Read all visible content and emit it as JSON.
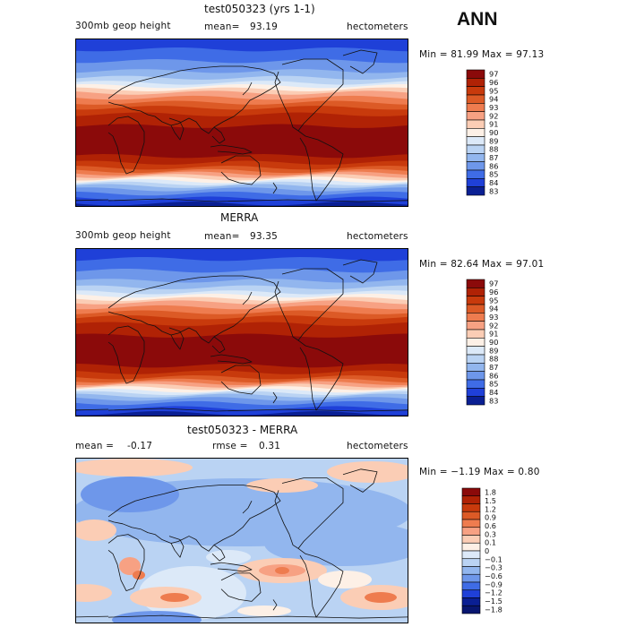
{
  "season": "ANN",
  "panels": [
    {
      "title": "test050323 (yrs 1-1)",
      "left": "300mb geop height",
      "mean_label": "mean=",
      "mean": "93.19",
      "units": "hectometers",
      "minmax": "Min =  81.99 Max =  97.13",
      "levels": [
        "97",
        "96",
        "95",
        "94",
        "93",
        "92",
        "91",
        "90",
        "89",
        "88",
        "87",
        "86",
        "85",
        "84",
        "83"
      ],
      "colors": [
        "#8b0a0a",
        "#b02205",
        "#c83a0c",
        "#dc5a26",
        "#ee7c4f",
        "#f7a183",
        "#fbcdb5",
        "#fdf0e6",
        "#dce9f8",
        "#bad3f3",
        "#92b6ee",
        "#6e97ea",
        "#3f6ce6",
        "#1f40d8",
        "#0a1f93"
      ]
    },
    {
      "title": "MERRA",
      "left": "300mb geop height",
      "mean_label": "mean=",
      "mean": "93.35",
      "units": "hectometers",
      "minmax": "Min =  82.64 Max =  97.01",
      "levels": [
        "97",
        "96",
        "95",
        "94",
        "93",
        "92",
        "91",
        "90",
        "89",
        "88",
        "87",
        "86",
        "85",
        "84",
        "83"
      ],
      "colors": [
        "#8b0a0a",
        "#b02205",
        "#c83a0c",
        "#dc5a26",
        "#ee7c4f",
        "#f7a183",
        "#fbcdb5",
        "#fdf0e6",
        "#dce9f8",
        "#bad3f3",
        "#92b6ee",
        "#6e97ea",
        "#3f6ce6",
        "#1f40d8",
        "#0a1f93"
      ]
    },
    {
      "title": "test050323 - MERRA",
      "left_label": "mean =",
      "left_value": "-0.17",
      "mid_label": "rmse =",
      "mid_value": "0.31",
      "units": "hectometers",
      "minmax": "Min =  −1.19 Max =    0.80",
      "levels": [
        "1.8",
        "1.5",
        "1.2",
        "0.9",
        "0.6",
        "0.3",
        "0.1",
        "0",
        "−0.1",
        "−0.3",
        "−0.6",
        "−0.9",
        "−1.2",
        "−1.5",
        "−1.8"
      ],
      "colors": [
        "#8b0a0a",
        "#b02205",
        "#c83a0c",
        "#dc5a26",
        "#ee7c4f",
        "#f7a183",
        "#fbcdb5",
        "#fdf0e6",
        "#dce9f8",
        "#bad3f3",
        "#92b6ee",
        "#6e97ea",
        "#3f6ce6",
        "#1f40d8",
        "#0a1f93",
        "#081670"
      ]
    }
  ],
  "chart_data": [
    {
      "type": "heatmap",
      "title": "test050323 (yrs 1-1)",
      "variable": "300mb geop height",
      "units": "hectometers",
      "mean": 93.19,
      "min": 81.99,
      "max": 97.13,
      "colorbar_levels": [
        83,
        84,
        85,
        86,
        87,
        88,
        89,
        90,
        91,
        92,
        93,
        94,
        95,
        96,
        97
      ]
    },
    {
      "type": "heatmap",
      "title": "MERRA",
      "variable": "300mb geop height",
      "units": "hectometers",
      "mean": 93.35,
      "min": 82.64,
      "max": 97.01,
      "colorbar_levels": [
        83,
        84,
        85,
        86,
        87,
        88,
        89,
        90,
        91,
        92,
        93,
        94,
        95,
        96,
        97
      ]
    },
    {
      "type": "heatmap",
      "title": "test050323 - MERRA",
      "units": "hectometers",
      "mean": -0.17,
      "rmse": 0.31,
      "min": -1.19,
      "max": 0.8,
      "colorbar_levels": [
        -1.8,
        -1.5,
        -1.2,
        -0.9,
        -0.6,
        -0.3,
        -0.1,
        0,
        0.1,
        0.3,
        0.6,
        0.9,
        1.2,
        1.5,
        1.8
      ]
    }
  ]
}
